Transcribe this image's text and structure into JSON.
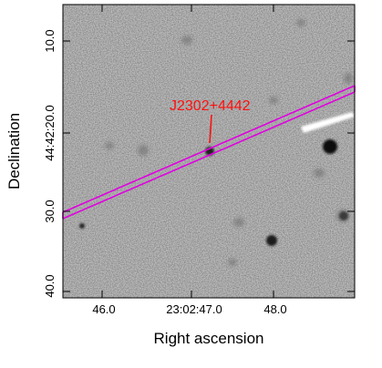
{
  "figure": {
    "x_axis_title": "Right ascension",
    "y_axis_title": "Declination",
    "x_tick_labels": [
      "46.0",
      "23:02:47.0",
      "48.0"
    ],
    "y_tick_labels": [
      "10.0",
      "44:42:20.0",
      "30.0",
      "40.0"
    ],
    "target": {
      "label": "J2302+4442"
    }
  },
  "colors": {
    "slit": "#e000e0",
    "label": "#ff1010",
    "frame": "#000000",
    "image_background": "#b9b9b9"
  }
}
